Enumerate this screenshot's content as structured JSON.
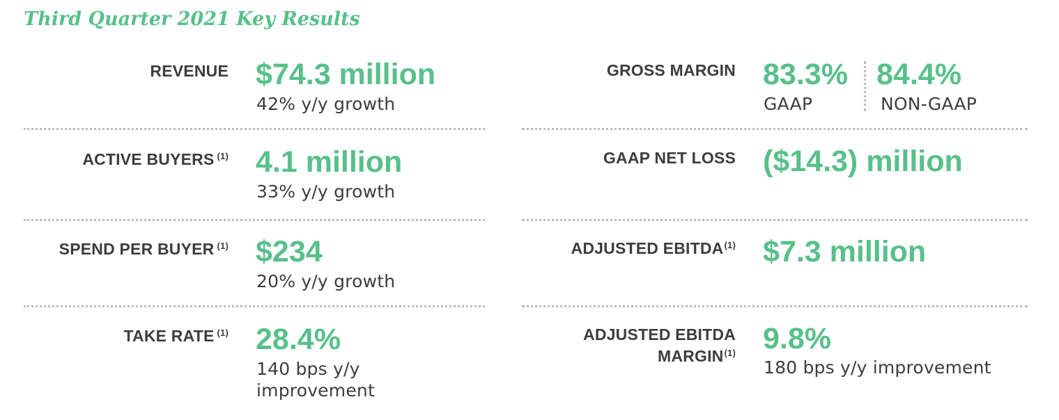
{
  "title": "Third Quarter 2021 Key Results",
  "left": {
    "revenue": {
      "label": "REVENUE",
      "value": "$74.3 million",
      "sub": "42% y/y growth"
    },
    "active_buyers": {
      "label": "ACTIVE BUYERS",
      "footnote": "(1)",
      "value": "4.1 million",
      "sub": "33% y/y growth"
    },
    "spend_per_buyer": {
      "label": "SPEND PER BUYER",
      "footnote": "(1)",
      "value": "$234",
      "sub": "20% y/y growth"
    },
    "take_rate": {
      "label": "TAKE RATE",
      "footnote": "(1)",
      "value": "28.4%",
      "sub_line1": "140 bps y/y",
      "sub_line2": "improvement"
    }
  },
  "right": {
    "gross_margin": {
      "label": "GROSS MARGIN",
      "gaap_value": "83.3%",
      "gaap_label": "GAAP",
      "non_gaap_value": "84.4%",
      "non_gaap_label": "NON-GAAP"
    },
    "gaap_net_loss": {
      "label": "GAAP NET LOSS",
      "value": "($14.3) million"
    },
    "adjusted_ebitda": {
      "label": "ADJUSTED EBITDA",
      "footnote": "(1)",
      "value": "$7.3 million"
    },
    "adjusted_ebitda_margin": {
      "label_line1": "ADJUSTED EBITDA",
      "label_line2": "MARGIN",
      "footnote": "(1)",
      "value": "9.8%",
      "sub": "180 bps y/y improvement"
    }
  },
  "colors": {
    "accent": "#58c08a",
    "text": "#3d3d3d",
    "divider": "#bdbdbd"
  }
}
